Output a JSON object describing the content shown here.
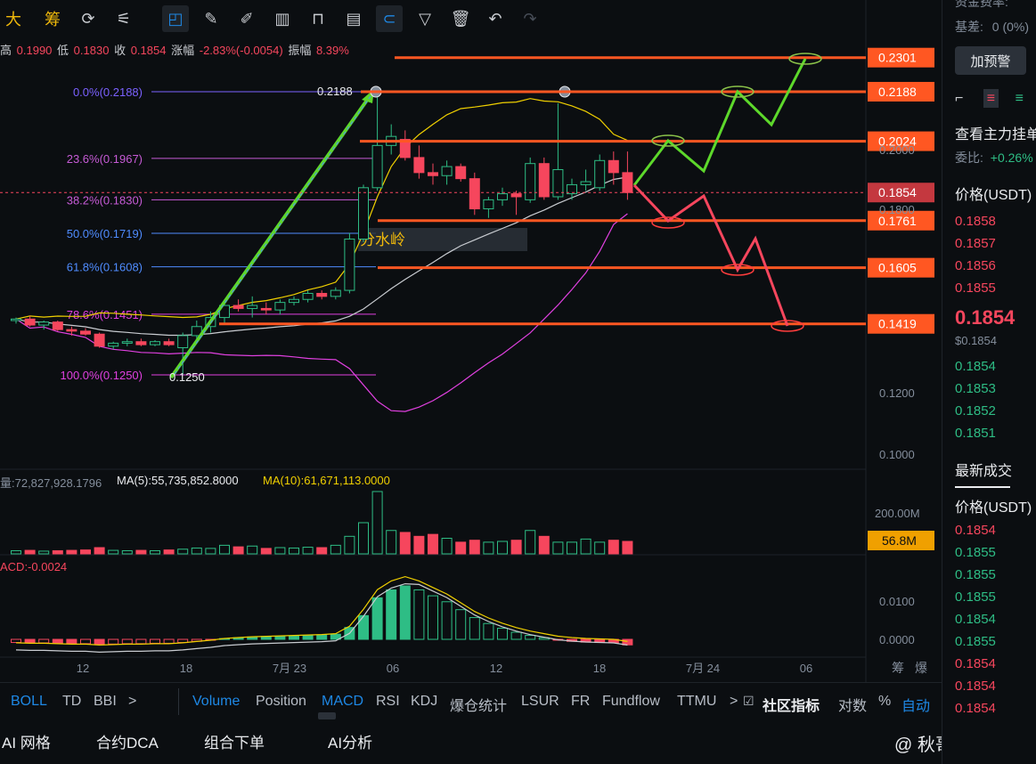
{
  "toolbar": {
    "left_glyphs": [
      "大",
      "筹"
    ],
    "icons": [
      "refresh-chart-icon",
      "measure-tool-icon",
      "draw-tool-icon",
      "ruler-icon",
      "pencil-icon",
      "bar-chart-icon",
      "lock-icon",
      "note-icon",
      "magnet-icon",
      "filter-icon",
      "trash-icon",
      "undo-icon",
      "redo-icon"
    ]
  },
  "quote": {
    "high_label": "高",
    "high": "0.1990",
    "low_label": "低",
    "low": "0.1830",
    "close_label": "收",
    "close": "0.1854",
    "change_label": "涨幅",
    "change": "-2.83%(-0.0054)",
    "amp_label": "振幅",
    "amp": "8.39%"
  },
  "fib": [
    {
      "label": "0.0%(0.2188)",
      "price": 0.2188,
      "color": "#7b61ff"
    },
    {
      "label": "23.6%(0.1967)",
      "price": 0.1967,
      "color": "#c65bd6"
    },
    {
      "label": "38.2%(0.1830)",
      "price": 0.183,
      "color": "#c65bd6"
    },
    {
      "label": "50.0%(0.1719)",
      "price": 0.1719,
      "color": "#4f8cff"
    },
    {
      "label": "61.8%(0.1608)",
      "price": 0.1608,
      "color": "#4f8cff"
    },
    {
      "label": "78.6%(0.1451)",
      "price": 0.1451,
      "color": "#e040e0"
    },
    {
      "label": "100.0%(0.1250)",
      "price": 0.125,
      "color": "#e040e0"
    }
  ],
  "annotations": {
    "peak": "0.2188",
    "trough": "0.1250",
    "divide": "分水岭"
  },
  "levels": [
    {
      "price": "0.2301"
    },
    {
      "price": "0.2188"
    },
    {
      "price": "0.2024"
    },
    {
      "price": "0.1761"
    },
    {
      "price": "0.1605"
    },
    {
      "price": "0.1419"
    }
  ],
  "current_price_tag": "0.1854",
  "axis": {
    "price_ticks": [
      "0.2000",
      "0.1800",
      "0.1200",
      "0.1000"
    ],
    "volume_ticks": [
      "200.00M"
    ],
    "volume_tag": "56.8M",
    "macd_ticks": [
      "0.0100",
      "0.0000"
    ],
    "time_ticks": [
      "12",
      "18",
      "7月 23",
      "06",
      "12",
      "18",
      "7月 24",
      "06"
    ],
    "corner": [
      "筹",
      "爆"
    ]
  },
  "indicators": {
    "volume_line": "量:72,827,928.1796",
    "ma5": "MA(5):55,735,852.8000",
    "ma10": "MA(10):61,671,113.0000",
    "macd_line": "ACD:-0.0024"
  },
  "chart_data": {
    "type": "candlestick",
    "candles": [
      [
        0.143,
        0.144,
        0.142,
        0.1435
      ],
      [
        0.1435,
        0.1445,
        0.141,
        0.1415
      ],
      [
        0.1415,
        0.143,
        0.14,
        0.1425
      ],
      [
        0.1425,
        0.143,
        0.1395,
        0.14
      ],
      [
        0.14,
        0.141,
        0.138,
        0.1395
      ],
      [
        0.1395,
        0.1405,
        0.138,
        0.1385
      ],
      [
        0.1385,
        0.139,
        0.134,
        0.1345
      ],
      [
        0.1345,
        0.136,
        0.1335,
        0.1355
      ],
      [
        0.1355,
        0.137,
        0.1345,
        0.136
      ],
      [
        0.136,
        0.137,
        0.1345,
        0.135
      ],
      [
        0.135,
        0.1365,
        0.1345,
        0.136
      ],
      [
        0.136,
        0.137,
        0.1345,
        0.135
      ],
      [
        0.134,
        0.139,
        0.125,
        0.138
      ],
      [
        0.138,
        0.143,
        0.137,
        0.141
      ],
      [
        0.141,
        0.146,
        0.139,
        0.144
      ],
      [
        0.144,
        0.15,
        0.142,
        0.148
      ],
      [
        0.148,
        0.15,
        0.146,
        0.147
      ],
      [
        0.147,
        0.151,
        0.144,
        0.148
      ],
      [
        0.147,
        0.149,
        0.145,
        0.1465
      ],
      [
        0.1465,
        0.15,
        0.145,
        0.149
      ],
      [
        0.149,
        0.151,
        0.148,
        0.15
      ],
      [
        0.15,
        0.153,
        0.149,
        0.152
      ],
      [
        0.152,
        0.153,
        0.15,
        0.151
      ],
      [
        0.151,
        0.154,
        0.15,
        0.153
      ],
      [
        0.153,
        0.172,
        0.152,
        0.17
      ],
      [
        0.17,
        0.188,
        0.169,
        0.187
      ],
      [
        0.187,
        0.2188,
        0.186,
        0.201
      ],
      [
        0.201,
        0.208,
        0.198,
        0.204
      ],
      [
        0.203,
        0.206,
        0.196,
        0.197
      ],
      [
        0.197,
        0.201,
        0.19,
        0.192
      ],
      [
        0.192,
        0.195,
        0.188,
        0.191
      ],
      [
        0.191,
        0.196,
        0.188,
        0.194
      ],
      [
        0.194,
        0.195,
        0.189,
        0.19
      ],
      [
        0.19,
        0.192,
        0.178,
        0.18
      ],
      [
        0.18,
        0.184,
        0.177,
        0.183
      ],
      [
        0.183,
        0.187,
        0.181,
        0.185
      ],
      [
        0.185,
        0.186,
        0.178,
        0.184
      ],
      [
        0.183,
        0.197,
        0.182,
        0.195
      ],
      [
        0.195,
        0.197,
        0.183,
        0.184
      ],
      [
        0.184,
        0.215,
        0.183,
        0.193
      ],
      [
        0.185,
        0.19,
        0.183,
        0.188
      ],
      [
        0.188,
        0.193,
        0.186,
        0.189
      ],
      [
        0.187,
        0.198,
        0.186,
        0.196
      ],
      [
        0.196,
        0.199,
        0.188,
        0.192
      ],
      [
        0.192,
        0.199,
        0.183,
        0.1854
      ]
    ],
    "volume": [
      8,
      9,
      7,
      8,
      9,
      10,
      16,
      9,
      8,
      9,
      8,
      10,
      12,
      15,
      14,
      22,
      18,
      20,
      14,
      16,
      15,
      17,
      16,
      22,
      45,
      80,
      160,
      60,
      55,
      45,
      50,
      40,
      30,
      35,
      30,
      32,
      35,
      60,
      45,
      30,
      30,
      38,
      30,
      35,
      32
    ],
    "macd_hist": [
      -0.0008,
      -0.0009,
      -0.0009,
      -0.001,
      -0.0011,
      -0.0011,
      -0.0013,
      -0.0012,
      -0.0011,
      -0.0011,
      -0.001,
      -0.001,
      -0.0008,
      -0.0005,
      -0.0002,
      0.0002,
      0.0004,
      0.0006,
      0.0007,
      0.0008,
      0.0009,
      0.001,
      0.0011,
      0.0013,
      0.003,
      0.006,
      0.0105,
      0.0125,
      0.0135,
      0.0125,
      0.011,
      0.0095,
      0.0075,
      0.0055,
      0.004,
      0.0028,
      0.0018,
      0.001,
      0.0004,
      -0.0002,
      -0.0005,
      -0.0007,
      -0.0008,
      -0.0009,
      -0.0014
    ],
    "green_path": [
      [
        0.1854,
        0
      ],
      [
        0.2024,
        1
      ],
      [
        0.194,
        2
      ],
      [
        0.2188,
        3
      ],
      [
        0.206,
        4
      ],
      [
        0.2301,
        5
      ]
    ],
    "red_path": [
      [
        0.1854,
        0
      ],
      [
        0.1761,
        1
      ],
      [
        0.182,
        2
      ],
      [
        0.1605,
        3
      ],
      [
        0.172,
        4
      ],
      [
        0.1419,
        5
      ]
    ]
  },
  "tabs": {
    "left": [
      "BOLL",
      "TD",
      "BBI",
      ">"
    ],
    "right": [
      "Volume",
      "Position",
      "MACD",
      "RSI",
      "KDJ",
      "爆仓统计",
      "LSUR",
      "FR",
      "Fundflow",
      "TTMU",
      ">",
      "社区指标",
      "对数",
      "%",
      "自动"
    ]
  },
  "bottom": [
    "AI 网格",
    "合约DCA",
    "组合下单",
    "AI分析"
  ],
  "watermark": "@ 秋哥趋势",
  "right_panel": {
    "fund_rate": "资金费率:",
    "basis_label": "基差:",
    "basis_value": "0 (0%)",
    "alert_button": "加预警",
    "view_main": "查看主力挂单",
    "ratio_label": "委比:",
    "ratio_value": "+0.26%",
    "price_header": "价格(USDT)",
    "asks": [
      "0.1858",
      "0.1857",
      "0.1856",
      "0.1855"
    ],
    "last_price": "0.1854",
    "last_usd": "$0.1854",
    "bids": [
      "0.1854",
      "0.1853",
      "0.1852",
      "0.1851"
    ],
    "latest_trades": "最新成交",
    "trades_header": "价格(USDT)",
    "trades": [
      {
        "p": "0.1854",
        "c": "#f6465d"
      },
      {
        "p": "0.1855",
        "c": "#2ebd85"
      },
      {
        "p": "0.1855",
        "c": "#2ebd85"
      },
      {
        "p": "0.1855",
        "c": "#2ebd85"
      },
      {
        "p": "0.1854",
        "c": "#2ebd85"
      },
      {
        "p": "0.1855",
        "c": "#2ebd85"
      },
      {
        "p": "0.1854",
        "c": "#f6465d"
      },
      {
        "p": "0.1854",
        "c": "#f6465d"
      },
      {
        "p": "0.1854",
        "c": "#f6465d"
      }
    ]
  },
  "colors": {
    "up": "#2ebd85",
    "down": "#f6465d",
    "level": "#ff5722",
    "accent": "#1e88e5",
    "green_arrow": "#5dd82b"
  }
}
